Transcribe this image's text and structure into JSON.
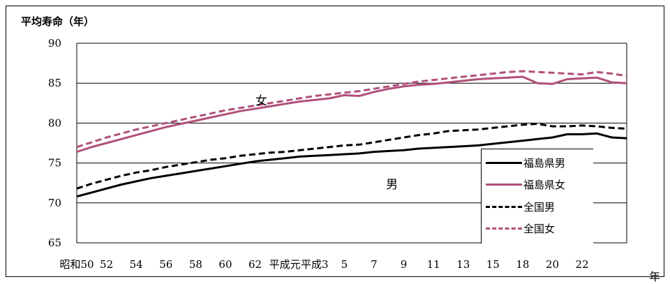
{
  "chart_data": {
    "type": "line",
    "ylabel": "平均寿命（年）",
    "xunit": "年",
    "ylim": [
      65,
      90
    ],
    "yticks": [
      65,
      70,
      75,
      80,
      85,
      90
    ],
    "grid": "horizontal",
    "x_tick_labels": [
      "昭和50",
      "52",
      "54",
      "56",
      "58",
      "60",
      "62",
      "平成元",
      "平成3",
      "5",
      "7",
      "9",
      "11",
      "13",
      "15",
      "18",
      "20",
      "22"
    ],
    "x_range": [
      1975,
      2012
    ],
    "x": [
      1975,
      1976,
      1977,
      1978,
      1979,
      1980,
      1981,
      1982,
      1983,
      1984,
      1985,
      1986,
      1987,
      1988,
      1989,
      1990,
      1991,
      1992,
      1993,
      1994,
      1995,
      1996,
      1997,
      1998,
      1999,
      2000,
      2001,
      2002,
      2003,
      2004,
      2005,
      2006,
      2007,
      2008,
      2009,
      2010,
      2011,
      2012
    ],
    "series": [
      {
        "name": "福島県男",
        "color": "#000000",
        "dash": "solid",
        "values": [
          70.8,
          71.3,
          71.8,
          72.3,
          72.7,
          73.1,
          73.4,
          73.7,
          74.0,
          74.3,
          74.6,
          74.9,
          75.2,
          75.4,
          75.6,
          75.8,
          75.9,
          76.0,
          76.1,
          76.2,
          76.4,
          76.5,
          76.6,
          76.8,
          76.9,
          77.0,
          77.1,
          77.2,
          77.4,
          77.6,
          77.8,
          78.0,
          78.2,
          78.6,
          78.6,
          78.7,
          78.2,
          78.1
        ]
      },
      {
        "name": "福島県女",
        "color": "#b0507a",
        "dash": "solid",
        "values": [
          76.4,
          77.0,
          77.5,
          78.0,
          78.5,
          79.0,
          79.5,
          79.9,
          80.3,
          80.7,
          81.1,
          81.5,
          81.8,
          82.1,
          82.4,
          82.7,
          82.9,
          83.1,
          83.5,
          83.4,
          83.9,
          84.3,
          84.6,
          84.8,
          84.9,
          85.1,
          85.3,
          85.5,
          85.6,
          85.7,
          85.8,
          85.0,
          84.9,
          85.5,
          85.6,
          85.7,
          85.1,
          85.0
        ]
      },
      {
        "name": "全国男",
        "color": "#000000",
        "dash": "dashed",
        "values": [
          71.8,
          72.4,
          72.9,
          73.4,
          73.8,
          74.1,
          74.5,
          74.8,
          75.1,
          75.4,
          75.6,
          75.9,
          76.1,
          76.3,
          76.4,
          76.6,
          76.8,
          77.0,
          77.2,
          77.3,
          77.6,
          77.9,
          78.2,
          78.5,
          78.7,
          79.0,
          79.1,
          79.2,
          79.4,
          79.6,
          79.8,
          79.9,
          79.6,
          79.6,
          79.7,
          79.6,
          79.4,
          79.3
        ]
      },
      {
        "name": "全国女",
        "color": "#b0507a",
        "dash": "dashed",
        "values": [
          77.0,
          77.6,
          78.2,
          78.7,
          79.2,
          79.6,
          80.0,
          80.4,
          80.8,
          81.2,
          81.6,
          81.9,
          82.2,
          82.5,
          82.8,
          83.1,
          83.4,
          83.6,
          83.8,
          84.0,
          84.3,
          84.6,
          84.9,
          85.2,
          85.4,
          85.6,
          85.8,
          86.0,
          86.2,
          86.4,
          86.5,
          86.4,
          86.3,
          86.2,
          86.1,
          86.4,
          86.2,
          85.9
        ]
      }
    ],
    "annotations": [
      "女",
      "男"
    ],
    "legend_position": "bottom-right"
  }
}
